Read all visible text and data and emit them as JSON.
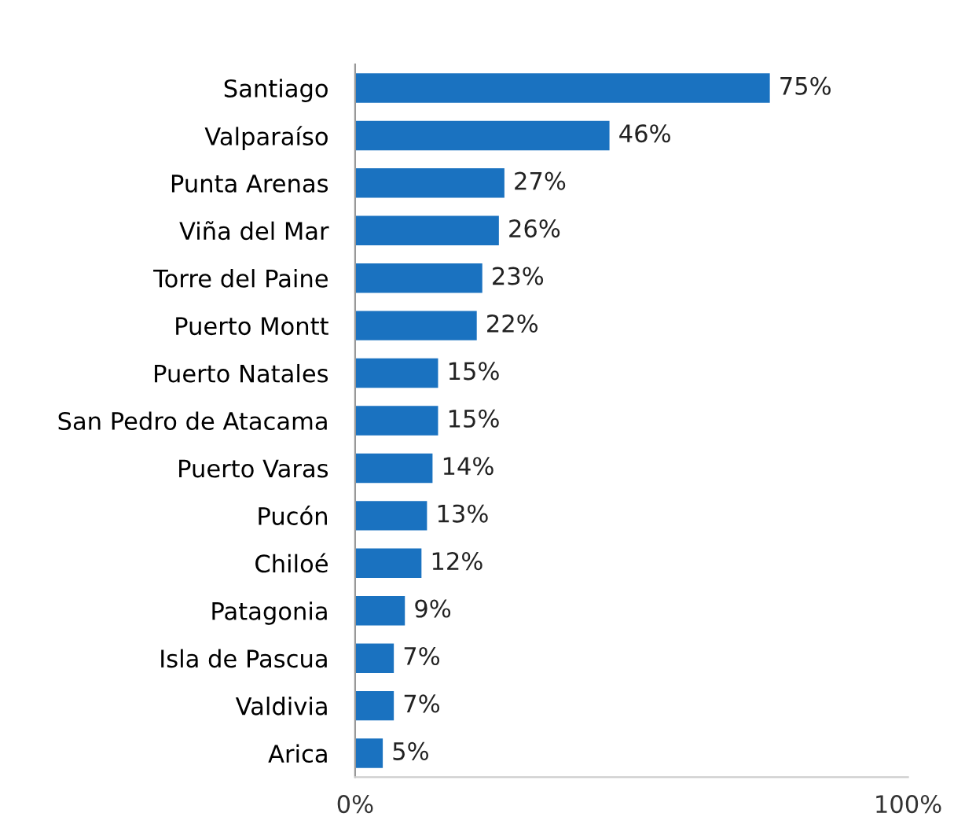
{
  "chart_data": {
    "type": "bar",
    "orientation": "horizontal",
    "categories": [
      "Santiago",
      "Valparaíso",
      "Punta Arenas",
      "Viña del Mar",
      "Torre del Paine",
      "Puerto Montt",
      "Puerto Natales",
      "San Pedro de Atacama",
      "Puerto Varas",
      "Pucón",
      "Chiloé",
      "Patagonia",
      "Isla de Pascua",
      "Valdivia",
      "Arica"
    ],
    "values": [
      75,
      46,
      27,
      26,
      23,
      22,
      15,
      15,
      14,
      13,
      12,
      9,
      7,
      7,
      5
    ],
    "value_labels": [
      "75%",
      "46%",
      "27%",
      "26%",
      "23%",
      "22%",
      "15%",
      "15%",
      "14%",
      "13%",
      "12%",
      "9%",
      "7%",
      "7%",
      "5%"
    ],
    "color": "#1a72c0",
    "xlim": [
      0,
      100
    ],
    "xticks": [
      {
        "value": 0,
        "label": "0%"
      },
      {
        "value": 100,
        "label": "100%"
      }
    ],
    "grid": false,
    "legend": false
  }
}
